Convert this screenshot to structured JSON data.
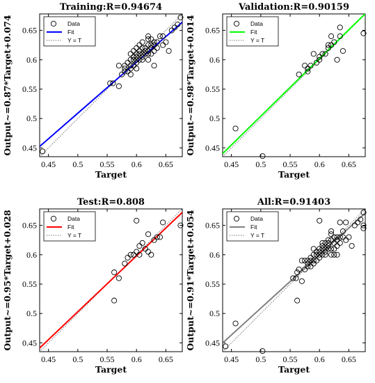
{
  "chart_data": [
    {
      "type": "scatter",
      "title": "Training:R=0.94674",
      "xlabel": "Target",
      "ylabel": "Output~=0.87*Target+0.074",
      "xlim": [
        0.435,
        0.678
      ],
      "ylim": [
        0.435,
        0.678
      ],
      "xticks": [
        "0.45",
        "0.5",
        "0.55",
        "0.6",
        "0.65"
      ],
      "yticks": [
        "0.45",
        "0.5",
        "0.55",
        "0.6",
        "0.65"
      ],
      "fit": {
        "slope": 0.87,
        "intercept": 0.074,
        "color": "#0000ff"
      },
      "legend": {
        "position": "top-left",
        "entries": [
          "Data",
          "Fit",
          "Y = T"
        ]
      },
      "x": [
        0.44,
        0.555,
        0.56,
        0.57,
        0.57,
        0.575,
        0.58,
        0.58,
        0.58,
        0.585,
        0.585,
        0.59,
        0.59,
        0.59,
        0.59,
        0.595,
        0.595,
        0.595,
        0.6,
        0.6,
        0.6,
        0.6,
        0.6,
        0.605,
        0.605,
        0.605,
        0.61,
        0.61,
        0.61,
        0.61,
        0.615,
        0.615,
        0.615,
        0.62,
        0.62,
        0.62,
        0.62,
        0.62,
        0.625,
        0.625,
        0.625,
        0.625,
        0.63,
        0.63,
        0.63,
        0.635,
        0.635,
        0.64,
        0.645,
        0.645,
        0.65,
        0.655,
        0.66,
        0.665,
        0.67,
        0.675,
        0.59,
        0.6,
        0.61,
        0.62,
        0.63,
        0.595,
        0.605
      ],
      "y": [
        0.444,
        0.56,
        0.56,
        0.555,
        0.59,
        0.575,
        0.58,
        0.585,
        0.59,
        0.58,
        0.595,
        0.585,
        0.59,
        0.6,
        0.61,
        0.59,
        0.6,
        0.605,
        0.595,
        0.6,
        0.605,
        0.61,
        0.62,
        0.6,
        0.61,
        0.615,
        0.6,
        0.605,
        0.61,
        0.62,
        0.61,
        0.615,
        0.62,
        0.6,
        0.61,
        0.615,
        0.625,
        0.64,
        0.61,
        0.62,
        0.625,
        0.635,
        0.615,
        0.625,
        0.63,
        0.62,
        0.63,
        0.64,
        0.625,
        0.64,
        0.63,
        0.615,
        0.65,
        0.655,
        0.66,
        0.672,
        0.575,
        0.585,
        0.63,
        0.635,
        0.59,
        0.615,
        0.625
      ]
    },
    {
      "type": "scatter",
      "title": "Validation:R=0.90159",
      "xlabel": "Target",
      "ylabel": "Output~=0.98*Target+0.014",
      "xlim": [
        0.435,
        0.678
      ],
      "ylim": [
        0.435,
        0.678
      ],
      "xticks": [
        "0.45",
        "0.5",
        "0.55",
        "0.6",
        "0.65"
      ],
      "yticks": [
        "0.45",
        "0.5",
        "0.55",
        "0.6",
        "0.65"
      ],
      "fit": {
        "slope": 0.98,
        "intercept": 0.014,
        "color": "#00ff00"
      },
      "legend": {
        "position": "top-left",
        "entries": [
          "Data",
          "Fit",
          "Y = T"
        ]
      },
      "x": [
        0.457,
        0.503,
        0.565,
        0.575,
        0.58,
        0.58,
        0.585,
        0.59,
        0.595,
        0.6,
        0.6,
        0.605,
        0.61,
        0.615,
        0.615,
        0.62,
        0.62,
        0.625,
        0.63,
        0.635,
        0.635,
        0.64,
        0.675
      ],
      "y": [
        0.483,
        0.436,
        0.575,
        0.59,
        0.58,
        0.585,
        0.59,
        0.61,
        0.595,
        0.605,
        0.6,
        0.61,
        0.61,
        0.62,
        0.625,
        0.64,
        0.625,
        0.63,
        0.6,
        0.64,
        0.655,
        0.615,
        0.645
      ]
    },
    {
      "type": "scatter",
      "title": "Test:R=0.808",
      "xlabel": "Target",
      "ylabel": "Output~=0.95*Target+0.028",
      "xlim": [
        0.435,
        0.678
      ],
      "ylim": [
        0.435,
        0.678
      ],
      "xticks": [
        "0.45",
        "0.5",
        "0.55",
        "0.6",
        "0.65"
      ],
      "yticks": [
        "0.45",
        "0.5",
        "0.55",
        "0.6",
        "0.65"
      ],
      "fit": {
        "slope": 0.95,
        "intercept": 0.028,
        "color": "#ff0000"
      },
      "legend": {
        "position": "top-left",
        "entries": [
          "Data",
          "Fit",
          "Y = T"
        ]
      },
      "x": [
        0.562,
        0.562,
        0.57,
        0.58,
        0.585,
        0.59,
        0.595,
        0.6,
        0.6,
        0.605,
        0.605,
        0.61,
        0.615,
        0.62,
        0.62,
        0.625,
        0.63,
        0.635,
        0.64,
        0.645,
        0.675
      ],
      "y": [
        0.522,
        0.57,
        0.56,
        0.585,
        0.595,
        0.6,
        0.6,
        0.605,
        0.658,
        0.6,
        0.615,
        0.62,
        0.61,
        0.605,
        0.635,
        0.6,
        0.625,
        0.63,
        0.63,
        0.655,
        0.65
      ]
    },
    {
      "type": "scatter",
      "title": "All:R=0.91403",
      "xlabel": "Target",
      "ylabel": "Output~=0.91*Target+0.054",
      "xlim": [
        0.435,
        0.678
      ],
      "ylim": [
        0.435,
        0.678
      ],
      "xticks": [
        "0.45",
        "0.5",
        "0.55",
        "0.6",
        "0.65"
      ],
      "yticks": [
        "0.45",
        "0.5",
        "0.55",
        "0.6",
        "0.65"
      ],
      "fit": {
        "slope": 0.91,
        "intercept": 0.054,
        "color": "#808080"
      },
      "legend": {
        "position": "top-left",
        "entries": [
          "Data",
          "Fit",
          "Y = T"
        ]
      },
      "x": [
        0.44,
        0.457,
        0.503,
        0.555,
        0.56,
        0.562,
        0.562,
        0.565,
        0.57,
        0.57,
        0.575,
        0.575,
        0.58,
        0.58,
        0.58,
        0.585,
        0.585,
        0.585,
        0.59,
        0.59,
        0.59,
        0.59,
        0.595,
        0.595,
        0.595,
        0.6,
        0.6,
        0.6,
        0.6,
        0.6,
        0.605,
        0.605,
        0.605,
        0.605,
        0.61,
        0.61,
        0.61,
        0.61,
        0.615,
        0.615,
        0.615,
        0.615,
        0.62,
        0.62,
        0.62,
        0.62,
        0.62,
        0.625,
        0.625,
        0.625,
        0.625,
        0.63,
        0.63,
        0.63,
        0.63,
        0.635,
        0.635,
        0.635,
        0.64,
        0.64,
        0.645,
        0.645,
        0.65,
        0.655,
        0.66,
        0.665,
        0.67,
        0.675,
        0.675,
        0.675
      ],
      "y": [
        0.444,
        0.483,
        0.436,
        0.56,
        0.56,
        0.522,
        0.57,
        0.575,
        0.555,
        0.59,
        0.575,
        0.59,
        0.58,
        0.585,
        0.59,
        0.58,
        0.59,
        0.595,
        0.585,
        0.59,
        0.6,
        0.61,
        0.59,
        0.6,
        0.605,
        0.595,
        0.6,
        0.605,
        0.61,
        0.658,
        0.6,
        0.61,
        0.615,
        0.62,
        0.6,
        0.605,
        0.61,
        0.62,
        0.61,
        0.615,
        0.62,
        0.625,
        0.6,
        0.61,
        0.625,
        0.635,
        0.64,
        0.61,
        0.62,
        0.63,
        0.6,
        0.615,
        0.625,
        0.63,
        0.6,
        0.62,
        0.63,
        0.655,
        0.64,
        0.63,
        0.625,
        0.655,
        0.63,
        0.615,
        0.65,
        0.655,
        0.66,
        0.672,
        0.65,
        0.645
      ]
    }
  ]
}
